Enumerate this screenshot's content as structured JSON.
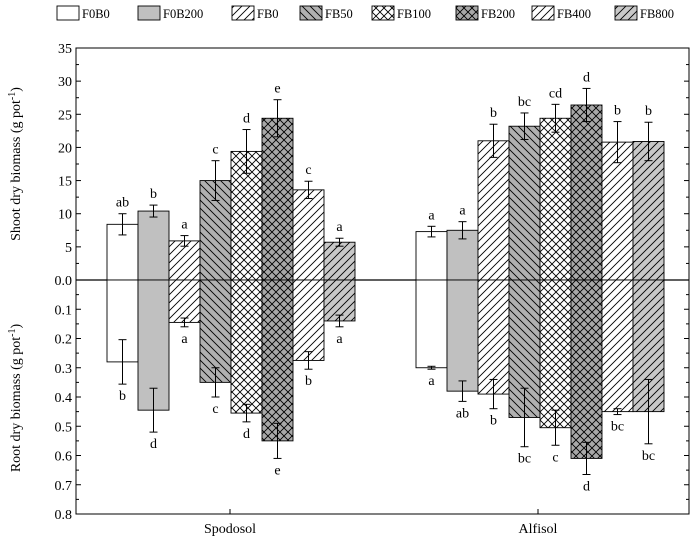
{
  "chart_data": {
    "type": "bar",
    "categories": [
      "Spodosol",
      "Alfisol"
    ],
    "series": [
      {
        "name": "F0B0",
        "pattern": "none",
        "fill": "#ffffff",
        "shoot": [
          8.4,
          7.3
        ],
        "shoot_err": [
          1.6,
          0.8
        ],
        "shoot_sig": [
          "ab",
          "a"
        ],
        "root": [
          0.28,
          0.3
        ],
        "root_err": [
          0.076,
          0.005
        ],
        "root_sig": [
          "b",
          "a"
        ]
      },
      {
        "name": "F0B200",
        "pattern": "solid",
        "fill": "#c0c0c0",
        "shoot": [
          10.4,
          7.5
        ],
        "shoot_err": [
          0.9,
          1.3
        ],
        "shoot_sig": [
          "b",
          "a"
        ],
        "root": [
          0.445,
          0.38
        ],
        "root_err": [
          0.075,
          0.035
        ],
        "root_sig": [
          "d",
          "ab"
        ]
      },
      {
        "name": "FB0",
        "pattern": "back",
        "fill": "#ffffff",
        "shoot": [
          5.9,
          21.0
        ],
        "shoot_err": [
          0.8,
          2.5
        ],
        "shoot_sig": [
          "a",
          "b"
        ],
        "root": [
          0.145,
          0.39
        ],
        "root_err": [
          0.015,
          0.05
        ],
        "root_sig": [
          "a",
          "b"
        ]
      },
      {
        "name": "FB50",
        "pattern": "fwd",
        "fill": "#b0b0b0",
        "shoot": [
          15.0,
          23.2
        ],
        "shoot_err": [
          3.0,
          2.0
        ],
        "shoot_sig": [
          "c",
          "bc"
        ],
        "root": [
          0.35,
          0.47
        ],
        "root_err": [
          0.05,
          0.1
        ],
        "root_sig": [
          "c",
          "bc"
        ]
      },
      {
        "name": "FB100",
        "pattern": "cross",
        "fill": "#ffffff",
        "shoot": [
          19.4,
          24.4
        ],
        "shoot_err": [
          3.3,
          2.1
        ],
        "shoot_sig": [
          "d",
          "cd"
        ],
        "root": [
          0.455,
          0.505
        ],
        "root_err": [
          0.03,
          0.06
        ],
        "root_sig": [
          "d",
          "c"
        ]
      },
      {
        "name": "FB200",
        "pattern": "crossdark",
        "fill": "#a8a8a8",
        "shoot": [
          24.4,
          26.4
        ],
        "shoot_err": [
          2.8,
          2.5
        ],
        "shoot_sig": [
          "e",
          "d"
        ],
        "root": [
          0.55,
          0.61
        ],
        "root_err": [
          0.06,
          0.055
        ],
        "root_sig": [
          "e",
          "d"
        ]
      },
      {
        "name": "FB400",
        "pattern": "back",
        "fill": "#ffffff",
        "shoot": [
          13.6,
          20.8
        ],
        "shoot_err": [
          1.3,
          3.1
        ],
        "shoot_sig": [
          "c",
          "b"
        ],
        "root": [
          0.275,
          0.45
        ],
        "root_err": [
          0.03,
          0.01
        ],
        "root_sig": [
          "b",
          "bc"
        ]
      },
      {
        "name": "FB800",
        "pattern": "back",
        "fill": "#c8c8c8",
        "shoot": [
          5.7,
          20.9
        ],
        "shoot_err": [
          0.6,
          2.9
        ],
        "shoot_sig": [
          "a",
          "b"
        ],
        "root": [
          0.14,
          0.45
        ],
        "root_err": [
          0.02,
          0.11
        ],
        "root_sig": [
          "a",
          "bc"
        ]
      }
    ],
    "shoot_ylabel": "Shoot dry biomass (g pot",
    "root_ylabel": "Root dry biomass (g pot",
    "unit_superscript": "-1",
    "label_close": ")",
    "shoot_ticks": [
      "35",
      "30",
      "25",
      "20",
      "15",
      "10",
      "5",
      "0"
    ],
    "root_ticks": [
      "0.0",
      "0.1",
      "0.2",
      "0.3",
      "0.4",
      "0.5",
      "0.6",
      "0.7",
      "0.8"
    ],
    "shoot_ylim": [
      0,
      35
    ],
    "root_ylim": [
      0,
      0.8
    ],
    "legend_position": "top"
  }
}
